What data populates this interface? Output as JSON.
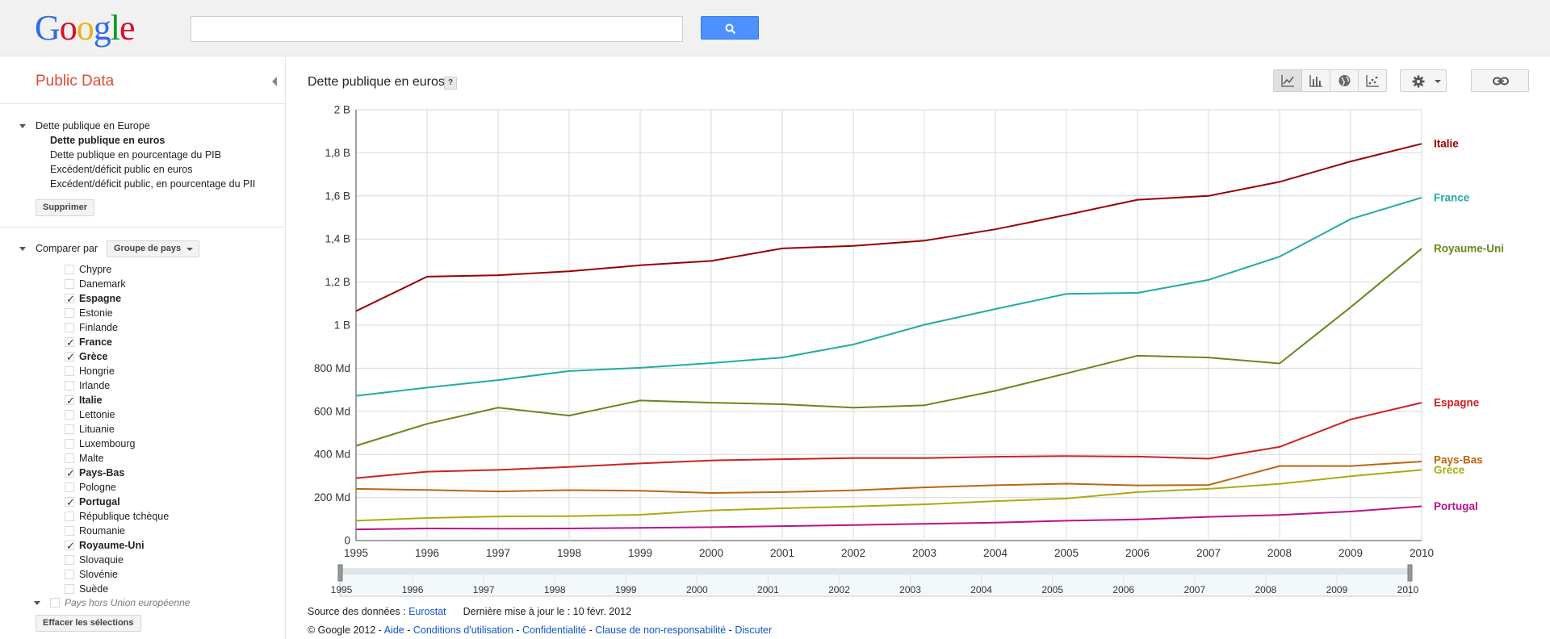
{
  "logo": {
    "letters": [
      "G",
      "o",
      "o",
      "g",
      "l",
      "e"
    ],
    "colors": [
      "#3369e8",
      "#d50f25",
      "#eeb211",
      "#3369e8",
      "#009925",
      "#d50f25"
    ]
  },
  "search": {
    "placeholder": "",
    "value": ""
  },
  "sidebar": {
    "title": "Public Data",
    "dataset_root": "Dette publique en Europe",
    "datasets": [
      {
        "label": "Dette publique en euros",
        "active": true
      },
      {
        "label": "Dette publique en pourcentage du PIB",
        "active": false
      },
      {
        "label": "Excédent/déficit public en euros",
        "active": false
      },
      {
        "label": "Excédent/déficit public, en pourcentage du PII",
        "active": false
      }
    ],
    "delete_label": "Supprimer",
    "compare_label": "Comparer par",
    "compare_value": "Groupe de pays",
    "countries": [
      {
        "name": "Chypre",
        "checked": false
      },
      {
        "name": "Danemark",
        "checked": false
      },
      {
        "name": "Espagne",
        "checked": true
      },
      {
        "name": "Estonie",
        "checked": false
      },
      {
        "name": "Finlande",
        "checked": false
      },
      {
        "name": "France",
        "checked": true
      },
      {
        "name": "Grèce",
        "checked": true
      },
      {
        "name": "Hongrie",
        "checked": false
      },
      {
        "name": "Irlande",
        "checked": false
      },
      {
        "name": "Italie",
        "checked": true
      },
      {
        "name": "Lettonie",
        "checked": false
      },
      {
        "name": "Lituanie",
        "checked": false
      },
      {
        "name": "Luxembourg",
        "checked": false
      },
      {
        "name": "Malte",
        "checked": false
      },
      {
        "name": "Pays-Bas",
        "checked": true
      },
      {
        "name": "Pologne",
        "checked": false
      },
      {
        "name": "Portugal",
        "checked": true
      },
      {
        "name": "République tchèque",
        "checked": false
      },
      {
        "name": "Roumanie",
        "checked": false
      },
      {
        "name": "Royaume-Uni",
        "checked": true
      },
      {
        "name": "Slovaquie",
        "checked": false
      },
      {
        "name": "Slovénie",
        "checked": false
      },
      {
        "name": "Suède",
        "checked": false
      }
    ],
    "non_eu_label": "Pays hors Union européenne",
    "clear_label": "Effacer les sélections"
  },
  "main": {
    "chart_title": "Dette publique en euros",
    "help_label": "?",
    "view_icons": [
      "line-chart-icon",
      "bar-chart-icon",
      "globe-icon",
      "scatter-icon"
    ],
    "settings_icon": "gear-icon",
    "link_icon": "link-icon"
  },
  "chart_data": {
    "type": "line",
    "title": "Dette publique en euros",
    "xlabel": "",
    "ylabel": "",
    "x": [
      1995,
      1996,
      1997,
      1998,
      1999,
      2000,
      2001,
      2002,
      2003,
      2004,
      2005,
      2006,
      2007,
      2008,
      2009,
      2010
    ],
    "ylim": [
      0,
      2000
    ],
    "y_ticks": [
      {
        "value": 0,
        "label": "0"
      },
      {
        "value": 200,
        "label": "200 Md"
      },
      {
        "value": 400,
        "label": "400 Md"
      },
      {
        "value": 600,
        "label": "600 Md"
      },
      {
        "value": 800,
        "label": "800 Md"
      },
      {
        "value": 1000,
        "label": "1 B"
      },
      {
        "value": 1200,
        "label": "1,2 B"
      },
      {
        "value": 1400,
        "label": "1,4 B"
      },
      {
        "value": 1600,
        "label": "1,6 B"
      },
      {
        "value": 1800,
        "label": "1,8 B"
      },
      {
        "value": 2000,
        "label": "2 B"
      }
    ],
    "grid": true,
    "legend": "right-end labels",
    "series": [
      {
        "name": "Italie",
        "color": "#990000",
        "values": [
          1065,
          1225,
          1232,
          1250,
          1278,
          1298,
          1356,
          1368,
          1392,
          1445,
          1512,
          1582,
          1600,
          1665,
          1760,
          1842
        ]
      },
      {
        "name": "France",
        "color": "#22aaa8",
        "values": [
          672,
          710,
          745,
          787,
          802,
          824,
          850,
          910,
          1002,
          1075,
          1145,
          1150,
          1210,
          1318,
          1492,
          1592
        ]
      },
      {
        "name": "Royaume-Uni",
        "color": "#66881c",
        "values": [
          440,
          542,
          617,
          580,
          650,
          640,
          633,
          617,
          628,
          695,
          776,
          858,
          850,
          822,
          1083,
          1355
        ]
      },
      {
        "name": "Espagne",
        "color": "#cc2222",
        "values": [
          290,
          320,
          328,
          342,
          358,
          372,
          378,
          383,
          383,
          389,
          392,
          390,
          380,
          435,
          562,
          640
        ]
      },
      {
        "name": "Pays-Bas",
        "color": "#bb6611",
        "values": [
          240,
          235,
          228,
          234,
          231,
          221,
          225,
          233,
          247,
          257,
          264,
          256,
          258,
          346,
          346,
          367
        ]
      },
      {
        "name": "Grèce",
        "color": "#aaaa11",
        "values": [
          92,
          105,
          112,
          113,
          120,
          140,
          150,
          158,
          168,
          183,
          195,
          225,
          240,
          263,
          299,
          328
        ]
      },
      {
        "name": "Portugal",
        "color": "#bb1188",
        "values": [
          52,
          56,
          55,
          56,
          59,
          62,
          67,
          72,
          78,
          83,
          92,
          98,
          110,
          119,
          135,
          159
        ]
      }
    ]
  },
  "footer": {
    "source_prefix": "Source des données : ",
    "source_link": "Eurostat",
    "updated": "Dernière mise à jour le : 10 févr. 2012",
    "copyright": "© Google 2012 - ",
    "links": [
      "Aide",
      "Conditions d'utilisation",
      "Confidentialité",
      "Clause de non-responsabilité",
      "Discuter"
    ]
  }
}
